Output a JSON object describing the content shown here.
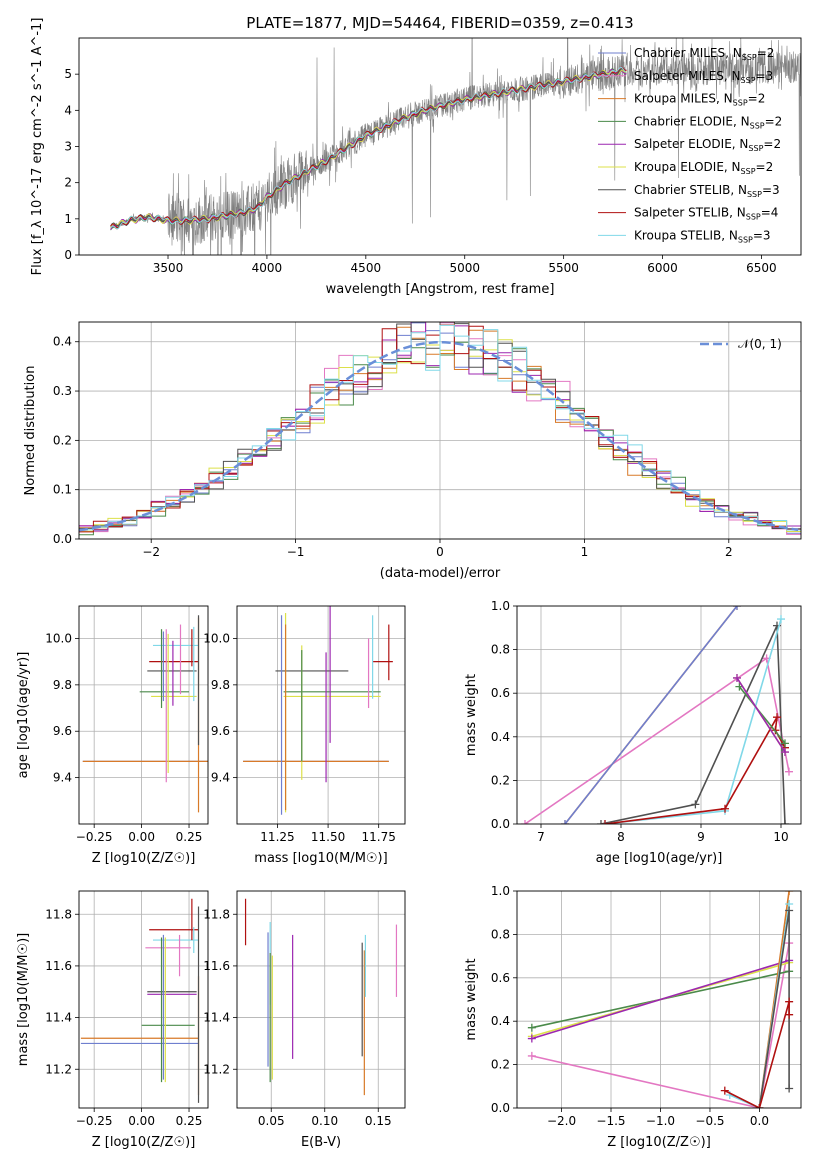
{
  "title": "PLATE=1877, MJD=54464, FIBERID=0359, z=0.413",
  "colors": {
    "Chabrier MILES": "#6f7fcf",
    "Salpeter MILES": "#e377c2",
    "Kroupa MILES": "#d87a29",
    "Chabrier ELODIE": "#4a8a4a",
    "Salpeter ELODIE": "#9c27b0",
    "Kroupa ELODIE": "#dce04a",
    "Chabrier STELIB": "#505050",
    "Salpeter STELIB": "#b01010",
    "Kroupa STELIB": "#80d8e8",
    "observed": "#808080",
    "normal": "#6a8fd8"
  },
  "chart_data": [
    {
      "id": "spectrum",
      "type": "line",
      "title": "PLATE=1877, MJD=54464, FIBERID=0359, z=0.413",
      "xlabel": "wavelength [Angstrom, rest frame]",
      "ylabel": "Flux [f_λ 10^-17 erg cm^-2 s^-1 A^-1]",
      "xlim": [
        3050,
        6700
      ],
      "ylim": [
        0,
        6
      ],
      "xticks": [
        3500,
        4000,
        4500,
        5000,
        5500,
        6000,
        6500
      ],
      "yticks": [
        0,
        1,
        2,
        3,
        4,
        5
      ],
      "grid": false,
      "legend_position": "right",
      "legend": [
        {
          "label": "Chabrier MILES, N",
          "sub": "SSP",
          "suffix": "=2"
        },
        {
          "label": "Salpeter MILES, N",
          "sub": "SSP",
          "suffix": "=3"
        },
        {
          "label": "Kroupa MILES, N",
          "sub": "SSP",
          "suffix": "=2"
        },
        {
          "label": "Chabrier ELODIE, N",
          "sub": "SSP",
          "suffix": "=2"
        },
        {
          "label": "Salpeter ELODIE, N",
          "sub": "SSP",
          "suffix": "=2"
        },
        {
          "label": "Kroupa ELODIE, N",
          "sub": "SSP",
          "suffix": "=2"
        },
        {
          "label": "Chabrier STELIB, N",
          "sub": "SSP",
          "suffix": "=3"
        },
        {
          "label": "Salpeter STELIB, N",
          "sub": "SSP",
          "suffix": "=4"
        },
        {
          "label": "Kroupa STELIB, N",
          "sub": "SSP",
          "suffix": "=3"
        }
      ],
      "model_continuum": [
        [
          3210,
          0.75
        ],
        [
          3300,
          0.95
        ],
        [
          3400,
          1.05
        ],
        [
          3500,
          0.95
        ],
        [
          3600,
          0.95
        ],
        [
          3700,
          1.0
        ],
        [
          3800,
          1.1
        ],
        [
          3900,
          1.2
        ],
        [
          3950,
          1.3
        ],
        [
          4000,
          1.6
        ],
        [
          4100,
          2.0
        ],
        [
          4200,
          2.3
        ],
        [
          4300,
          2.6
        ],
        [
          4400,
          2.95
        ],
        [
          4500,
          3.3
        ],
        [
          4600,
          3.55
        ],
        [
          4700,
          3.8
        ],
        [
          4800,
          4.0
        ],
        [
          4900,
          4.15
        ],
        [
          5000,
          4.3
        ],
        [
          5100,
          4.4
        ],
        [
          5200,
          4.5
        ],
        [
          5300,
          4.6
        ],
        [
          5400,
          4.7
        ],
        [
          5500,
          4.8
        ],
        [
          5600,
          4.9
        ],
        [
          5700,
          5.0
        ],
        [
          5800,
          5.1
        ]
      ]
    },
    {
      "id": "residuals",
      "type": "line",
      "xlabel": "(data-model)/error",
      "ylabel": "Normed distribution",
      "xlim": [
        -2.5,
        2.5
      ],
      "ylim": [
        0,
        0.44
      ],
      "xticks": [
        -2,
        -1,
        0,
        1,
        2
      ],
      "yticks": [
        0.0,
        0.1,
        0.2,
        0.3,
        0.4
      ],
      "grid": true,
      "legend_position": "top-right",
      "legend_label": "𝒩(0, 1)",
      "curve": "standard normal density"
    },
    {
      "id": "z-age",
      "type": "scatter",
      "xlabel": "Z [log10(Z/Z☉)]",
      "ylabel": "age  [log10(age/yr)]",
      "xlim": [
        -0.33,
        0.35
      ],
      "ylim": [
        9.2,
        10.14
      ],
      "xticks": [
        -0.25,
        0.0,
        0.25
      ],
      "yticks": [
        9.4,
        9.6,
        9.8,
        10.0
      ],
      "grid": true,
      "points": [
        {
          "model": "Chabrier MILES",
          "x": 0.02,
          "xerr": 0.33,
          "y": 9.47,
          "yerr": 0.0
        },
        {
          "model": "Kroupa MILES",
          "x": 0.02,
          "xerr": 0.33,
          "y": 9.47,
          "yerr": 0.0
        },
        {
          "model": "Kroupa STELIB",
          "x": 0.18,
          "xerr": 0.12,
          "y": 9.97,
          "yerr": 0.0
        },
        {
          "model": "Salpeter STELIB",
          "x": 0.17,
          "xerr": 0.13,
          "y": 9.9,
          "yerr": 0.0
        },
        {
          "model": "Chabrier STELIB",
          "x": 0.16,
          "xerr": 0.13,
          "y": 9.86,
          "yerr": 0.0
        },
        {
          "model": "Chabrier ELODIE",
          "x": 0.12,
          "xerr": 0.13,
          "y": 9.77,
          "yerr": 0.0
        },
        {
          "model": "Kroupa ELODIE",
          "x": 0.17,
          "xerr": 0.12,
          "y": 9.75,
          "yerr": 0.0
        },
        {
          "model": "Chabrier MILES",
          "x": 0.115,
          "xerr": 0.0,
          "y": 9.88,
          "yerr": 0.15
        },
        {
          "model": "Chabrier ELODIE",
          "x": 0.105,
          "xerr": 0.0,
          "y": 9.87,
          "yerr": 0.17
        },
        {
          "model": "Salpeter MILES",
          "x": 0.13,
          "xerr": 0.0,
          "y": 9.71,
          "yerr": 0.33
        },
        {
          "model": "Kroupa ELODIE",
          "x": 0.14,
          "xerr": 0.0,
          "y": 9.72,
          "yerr": 0.3
        },
        {
          "model": "Salpeter ELODIE",
          "x": 0.165,
          "xerr": 0.0,
          "y": 9.85,
          "yerr": 0.14
        },
        {
          "model": "Salpeter MILES",
          "x": 0.205,
          "xerr": 0.0,
          "y": 9.91,
          "yerr": 0.15
        },
        {
          "model": "Salpeter STELIB",
          "x": 0.265,
          "xerr": 0.0,
          "y": 9.96,
          "yerr": 0.08
        },
        {
          "model": "Kroupa STELIB",
          "x": 0.275,
          "xerr": 0.0,
          "y": 9.89,
          "yerr": 0.16
        },
        {
          "model": "Kroupa MILES",
          "x": 0.3,
          "xerr": 0.0,
          "y": 9.67,
          "yerr": 0.42
        },
        {
          "model": "Chabrier STELIB",
          "x": 0.3,
          "xerr": 0.0,
          "y": 9.82,
          "yerr": 0.28
        },
        {
          "model": "Salpeter ELODIE",
          "x": 0.1,
          "xerr": 0.0,
          "y": 9.73,
          "yerr": 0.0
        }
      ]
    },
    {
      "id": "mass-age",
      "type": "scatter",
      "xlabel": "mass [log10(M/M☉)]",
      "ylabel": "",
      "xlim": [
        11.05,
        11.88
      ],
      "ylim": [
        9.2,
        10.14
      ],
      "xticks": [
        11.25,
        11.5,
        11.75
      ],
      "yticks": [
        9.4,
        9.6,
        9.8,
        10.0
      ],
      "grid": true,
      "points": [
        {
          "model": "Chabrier MILES",
          "x": 11.44,
          "xerr": 0.36,
          "y": 9.47,
          "yerr": 0.0
        },
        {
          "model": "Kroupa MILES",
          "x": 11.44,
          "xerr": 0.36,
          "y": 9.47,
          "yerr": 0.0
        },
        {
          "model": "Chabrier ELODIE",
          "x": 11.52,
          "xerr": 0.24,
          "y": 9.77,
          "yerr": 0.0
        },
        {
          "model": "Kroupa ELODIE",
          "x": 11.52,
          "xerr": 0.24,
          "y": 9.75,
          "yerr": 0.0
        },
        {
          "model": "Chabrier STELIB",
          "x": 11.42,
          "xerr": 0.18,
          "y": 9.86,
          "yerr": 0.0
        },
        {
          "model": "Salpeter STELIB",
          "x": 11.77,
          "xerr": 0.05,
          "y": 9.9,
          "yerr": 0.0
        },
        {
          "model": "Chabrier MILES",
          "x": 11.27,
          "xerr": 0.0,
          "y": 9.67,
          "yerr": 0.43
        },
        {
          "model": "Kroupa ELODIE",
          "x": 11.29,
          "xerr": 0.0,
          "y": 9.68,
          "yerr": 0.43
        },
        {
          "model": "Kroupa MILES",
          "x": 11.29,
          "xerr": 0.0,
          "y": 9.66,
          "yerr": 0.4
        },
        {
          "model": "Kroupa ELODIE",
          "x": 11.37,
          "xerr": 0.0,
          "y": 9.68,
          "yerr": 0.29
        },
        {
          "model": "Chabrier ELODIE",
          "x": 11.37,
          "xerr": 0.0,
          "y": 9.71,
          "yerr": 0.24
        },
        {
          "model": "Salpeter ELODIE",
          "x": 11.49,
          "xerr": 0.0,
          "y": 9.66,
          "yerr": 0.28
        },
        {
          "model": "Salpeter ELODIE",
          "x": 11.51,
          "xerr": 0.0,
          "y": 9.86,
          "yerr": 0.31
        },
        {
          "model": "Salpeter MILES",
          "x": 11.7,
          "xerr": 0.0,
          "y": 9.85,
          "yerr": 0.15
        },
        {
          "model": "Kroupa STELIB",
          "x": 11.72,
          "xerr": 0.0,
          "y": 9.92,
          "yerr": 0.18
        },
        {
          "model": "Salpeter STELIB",
          "x": 11.8,
          "xerr": 0.0,
          "y": 9.94,
          "yerr": 0.12
        }
      ]
    },
    {
      "id": "age-weight",
      "type": "line",
      "xlabel": "age  [log10(age/yr)]",
      "ylabel": "mass weight",
      "xlim": [
        6.7,
        10.25
      ],
      "ylim": [
        0,
        1.0
      ],
      "xticks": [
        7,
        8,
        9,
        10
      ],
      "yticks": [
        0.0,
        0.2,
        0.4,
        0.6,
        0.8,
        1.0
      ],
      "grid": true,
      "series": [
        {
          "model": "Salpeter MILES",
          "points": [
            [
              6.8,
              0.0
            ],
            [
              9.82,
              0.76
            ],
            [
              10.1,
              0.24
            ]
          ]
        },
        {
          "model": "Kroupa MILES",
          "points": [
            [
              7.3,
              0.0
            ],
            [
              9.45,
              1.0
            ]
          ]
        },
        {
          "model": "Chabrier MILES",
          "points": [
            [
              7.3,
              0.0
            ],
            [
              9.45,
              1.0
            ]
          ]
        },
        {
          "model": "Chabrier STELIB",
          "points": [
            [
              7.75,
              0.0
            ],
            [
              8.93,
              0.09
            ],
            [
              9.95,
              0.91
            ],
            [
              10.05,
              0.0
            ]
          ]
        },
        {
          "model": "Kroupa STELIB",
          "points": [
            [
              7.8,
              0.0
            ],
            [
              9.3,
              0.06
            ],
            [
              10.0,
              0.94
            ]
          ]
        },
        {
          "model": "Salpeter STELIB",
          "points": [
            [
              7.8,
              0.0
            ],
            [
              9.3,
              0.07
            ],
            [
              9.95,
              0.49
            ],
            [
              9.93,
              0.43
            ],
            [
              10.05,
              0.35
            ]
          ]
        },
        {
          "model": "Chabrier ELODIE",
          "points": [
            [
              9.48,
              0.63
            ],
            [
              10.05,
              0.37
            ]
          ]
        },
        {
          "model": "Kroupa ELODIE",
          "points": [
            [
              9.45,
              0.67
            ],
            [
              10.05,
              0.33
            ]
          ]
        },
        {
          "model": "Salpeter ELODIE",
          "points": [
            [
              9.45,
              0.67
            ],
            [
              10.05,
              0.33
            ]
          ]
        }
      ]
    },
    {
      "id": "z-mass",
      "type": "scatter",
      "xlabel": "Z [log10(Z/Z☉)]",
      "ylabel": "mass [log10(M/M☉)]",
      "xlim": [
        -0.33,
        0.35
      ],
      "ylim": [
        11.05,
        11.89
      ],
      "xticks": [
        -0.25,
        0.0,
        0.25
      ],
      "yticks": [
        11.2,
        11.4,
        11.6,
        11.8
      ],
      "grid": true,
      "points": [
        {
          "model": "Chabrier MILES",
          "x": -0.01,
          "xerr": 0.31,
          "y": 11.3,
          "yerr": 0.0
        },
        {
          "model": "Kroupa MILES",
          "x": -0.01,
          "xerr": 0.31,
          "y": 11.32,
          "yerr": 0.0
        },
        {
          "model": "Chabrier ELODIE",
          "x": 0.14,
          "xerr": 0.14,
          "y": 11.37,
          "yerr": 0.0
        },
        {
          "model": "Chabrier STELIB",
          "x": 0.16,
          "xerr": 0.13,
          "y": 11.5,
          "yerr": 0.0
        },
        {
          "model": "Salpeter ELODIE",
          "x": 0.16,
          "xerr": 0.13,
          "y": 11.49,
          "yerr": 0.0
        },
        {
          "model": "Salpeter MILES",
          "x": 0.14,
          "xerr": 0.12,
          "y": 11.67,
          "yerr": 0.0
        },
        {
          "model": "Kroupa STELIB",
          "x": 0.18,
          "xerr": 0.12,
          "y": 11.7,
          "yerr": 0.0
        },
        {
          "model": "Salpeter STELIB",
          "x": 0.17,
          "xerr": 0.13,
          "y": 11.74,
          "yerr": 0.0
        },
        {
          "model": "Chabrier ELODIE",
          "x": 0.105,
          "xerr": 0.0,
          "y": 11.43,
          "yerr": 0.28
        },
        {
          "model": "Kroupa ELODIE",
          "x": 0.125,
          "xerr": 0.0,
          "y": 11.43,
          "yerr": 0.28
        },
        {
          "model": "Chabrier MILES",
          "x": 0.115,
          "xerr": 0.0,
          "y": 11.44,
          "yerr": 0.28
        },
        {
          "model": "Salpeter MILES",
          "x": 0.2,
          "xerr": 0.0,
          "y": 11.64,
          "yerr": 0.08
        },
        {
          "model": "Salpeter STELIB",
          "x": 0.265,
          "xerr": 0.0,
          "y": 11.78,
          "yerr": 0.08
        },
        {
          "model": "Kroupa STELIB",
          "x": 0.275,
          "xerr": 0.0,
          "y": 11.7,
          "yerr": 0.05
        },
        {
          "model": "Kroupa MILES",
          "x": 0.3,
          "xerr": 0.0,
          "y": 11.33,
          "yerr": 0.23
        },
        {
          "model": "Chabrier STELIB",
          "x": 0.3,
          "xerr": 0.0,
          "y": 11.45,
          "yerr": 0.38
        }
      ]
    },
    {
      "id": "ebv-mass",
      "type": "scatter",
      "xlabel": "E(B-V)",
      "ylabel": "",
      "xlim": [
        0.018,
        0.175
      ],
      "ylim": [
        11.05,
        11.89
      ],
      "xticks": [
        0.05,
        0.1,
        0.15
      ],
      "yticks": [
        11.2,
        11.4,
        11.6,
        11.8
      ],
      "grid": true,
      "points": [
        {
          "model": "Salpeter STELIB",
          "x": 0.026,
          "y": 11.77,
          "yerr": 0.09
        },
        {
          "model": "Chabrier MILES",
          "x": 0.047,
          "y": 11.47,
          "yerr": 0.26
        },
        {
          "model": "Kroupa STELIB",
          "x": 0.049,
          "y": 11.61,
          "yerr": 0.16
        },
        {
          "model": "Chabrier ELODIE",
          "x": 0.049,
          "y": 11.4,
          "yerr": 0.25
        },
        {
          "model": "Kroupa ELODIE",
          "x": 0.051,
          "y": 11.4,
          "yerr": 0.24
        },
        {
          "model": "Salpeter ELODIE",
          "x": 0.07,
          "y": 11.48,
          "yerr": 0.24
        },
        {
          "model": "Chabrier STELIB",
          "x": 0.135,
          "y": 11.47,
          "yerr": 0.22
        },
        {
          "model": "Kroupa MILES",
          "x": 0.137,
          "y": 11.38,
          "yerr": 0.28
        },
        {
          "model": "Kroupa STELIB",
          "x": 0.138,
          "y": 11.6,
          "yerr": 0.12
        },
        {
          "model": "Salpeter MILES",
          "x": 0.167,
          "y": 11.62,
          "yerr": 0.14
        }
      ]
    },
    {
      "id": "z-weight",
      "type": "line",
      "xlabel": "Z [log10(Z/Z☉)]",
      "ylabel": "mass weight",
      "xlim": [
        -2.45,
        0.42
      ],
      "ylim": [
        0,
        1.0
      ],
      "xticks": [
        -2.0,
        -1.5,
        -1.0,
        -0.5,
        0.0
      ],
      "yticks": [
        0.0,
        0.2,
        0.4,
        0.6,
        0.8,
        1.0
      ],
      "grid": true,
      "series": [
        {
          "model": "Salpeter MILES",
          "points": [
            [
              -2.3,
              0.24
            ],
            [
              0.0,
              0.0
            ],
            [
              0.3,
              0.76
            ]
          ]
        },
        {
          "model": "Chabrier ELODIE",
          "points": [
            [
              -2.3,
              0.37
            ],
            [
              0.3,
              0.63
            ]
          ]
        },
        {
          "model": "Kroupa ELODIE",
          "points": [
            [
              -2.3,
              0.33
            ],
            [
              0.3,
              0.67
            ]
          ]
        },
        {
          "model": "Salpeter ELODIE",
          "points": [
            [
              -2.3,
              0.32
            ],
            [
              0.3,
              0.68
            ]
          ]
        },
        {
          "model": "Kroupa MILES",
          "points": [
            [
              0.0,
              0.0
            ],
            [
              0.3,
              1.0
            ]
          ]
        },
        {
          "model": "Kroupa STELIB",
          "points": [
            [
              -0.3,
              0.06
            ],
            [
              0.0,
              0.0
            ],
            [
              0.3,
              0.94
            ]
          ]
        },
        {
          "model": "Chabrier STELIB",
          "points": [
            [
              0.0,
              0.0
            ],
            [
              0.3,
              0.91
            ],
            [
              0.3,
              0.09
            ]
          ]
        },
        {
          "model": "Salpeter STELIB",
          "points": [
            [
              -0.35,
              0.08
            ],
            [
              0.0,
              0.0
            ],
            [
              0.3,
              0.49
            ],
            [
              0.3,
              0.43
            ]
          ]
        }
      ]
    }
  ]
}
